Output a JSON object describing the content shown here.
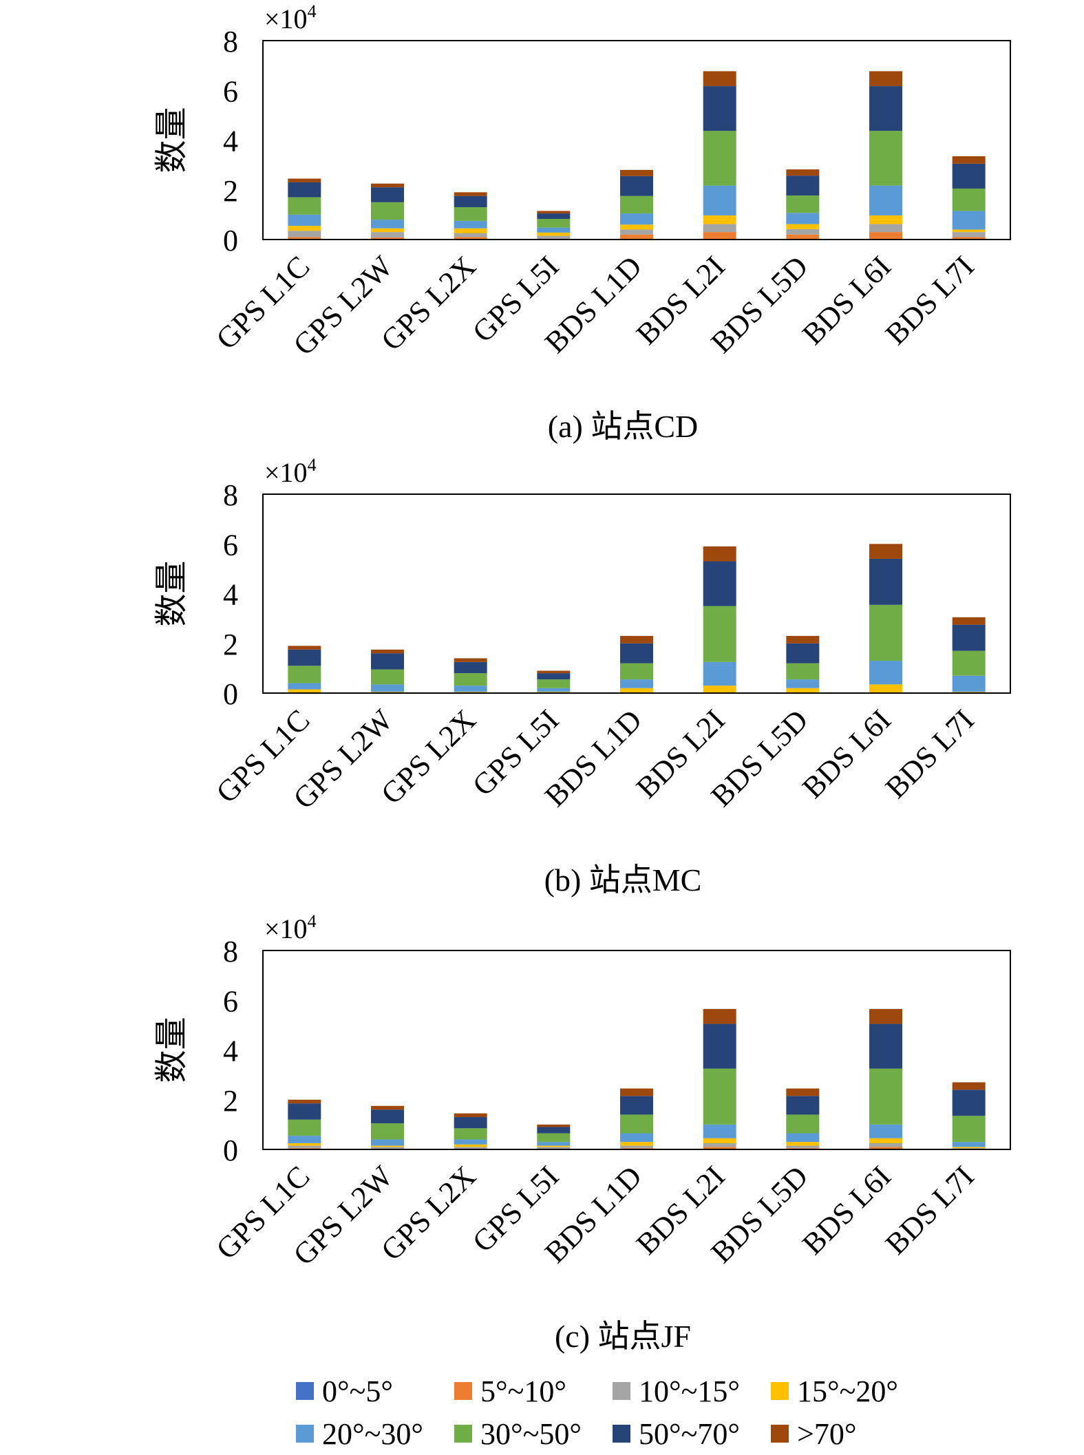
{
  "chart_data": [
    {
      "type": "bar",
      "stacked": true,
      "caption": "(a) 站点CD",
      "ylabel": "数量",
      "multiplier_label": "×10",
      "multiplier_exp": "4",
      "ylim": [
        0,
        8
      ],
      "yticks": [
        "0",
        "2",
        "4",
        "6",
        "8"
      ],
      "categories": [
        "GPS L1C",
        "GPS L2W",
        "GPS L2X",
        "GPS L5I",
        "BDS L1D",
        "BDS L2I",
        "BDS L5D",
        "BDS L6I",
        "BDS L7I"
      ],
      "series": [
        {
          "name": "0°~5°",
          "values": [
            0.0,
            0.0,
            0.0,
            0.0,
            0.0,
            0.0,
            0.0,
            0.0,
            0.0
          ]
        },
        {
          "name": "5°~10°",
          "values": [
            0.1,
            0.08,
            0.1,
            0.0,
            0.2,
            0.3,
            0.2,
            0.3,
            0.1
          ]
        },
        {
          "name": "10°~15°",
          "values": [
            0.25,
            0.22,
            0.15,
            0.15,
            0.2,
            0.32,
            0.22,
            0.32,
            0.2
          ]
        },
        {
          "name": "15°~20°",
          "values": [
            0.2,
            0.15,
            0.2,
            0.13,
            0.2,
            0.35,
            0.2,
            0.35,
            0.1
          ]
        },
        {
          "name": "20°~30°",
          "values": [
            0.45,
            0.35,
            0.3,
            0.2,
            0.45,
            1.2,
            0.45,
            1.2,
            0.75
          ]
        },
        {
          "name": "30°~50°",
          "values": [
            0.7,
            0.7,
            0.55,
            0.35,
            0.7,
            2.2,
            0.7,
            2.2,
            0.9
          ]
        },
        {
          "name": "50°~70°",
          "values": [
            0.6,
            0.6,
            0.45,
            0.22,
            0.8,
            1.8,
            0.8,
            1.8,
            1.0
          ]
        },
        {
          "name": ">70°",
          "values": [
            0.15,
            0.15,
            0.15,
            0.1,
            0.25,
            0.6,
            0.25,
            0.6,
            0.3
          ]
        }
      ]
    },
    {
      "type": "bar",
      "stacked": true,
      "caption": "(b) 站点MC",
      "ylabel": "数量",
      "multiplier_label": "×10",
      "multiplier_exp": "4",
      "ylim": [
        0,
        8
      ],
      "yticks": [
        "0",
        "2",
        "4",
        "6",
        "8"
      ],
      "categories": [
        "GPS L1C",
        "GPS L2W",
        "GPS L2X",
        "GPS L5I",
        "BDS L1D",
        "BDS L2I",
        "BDS L5D",
        "BDS L6I",
        "BDS L7I"
      ],
      "series": [
        {
          "name": "0°~5°",
          "values": [
            0.0,
            0.0,
            0.0,
            0.0,
            0.0,
            0.0,
            0.0,
            0.0,
            0.0
          ]
        },
        {
          "name": "5°~10°",
          "values": [
            0.0,
            0.0,
            0.0,
            0.0,
            0.0,
            0.0,
            0.0,
            0.0,
            0.0
          ]
        },
        {
          "name": "10°~15°",
          "values": [
            0.0,
            0.0,
            0.0,
            0.0,
            0.0,
            0.0,
            0.0,
            0.0,
            0.0
          ]
        },
        {
          "name": "15°~20°",
          "values": [
            0.15,
            0.05,
            0.05,
            0.05,
            0.2,
            0.3,
            0.2,
            0.35,
            0.05
          ]
        },
        {
          "name": "20°~30°",
          "values": [
            0.25,
            0.3,
            0.25,
            0.15,
            0.35,
            0.95,
            0.35,
            0.95,
            0.65
          ]
        },
        {
          "name": "30°~50°",
          "values": [
            0.7,
            0.6,
            0.5,
            0.35,
            0.65,
            2.25,
            0.65,
            2.25,
            1.0
          ]
        },
        {
          "name": "50°~70°",
          "values": [
            0.65,
            0.65,
            0.45,
            0.25,
            0.8,
            1.8,
            0.8,
            1.85,
            1.05
          ]
        },
        {
          "name": ">70°",
          "values": [
            0.15,
            0.15,
            0.15,
            0.1,
            0.3,
            0.6,
            0.3,
            0.6,
            0.3
          ]
        }
      ]
    },
    {
      "type": "bar",
      "stacked": true,
      "caption": "(c) 站点JF",
      "ylabel": "数量",
      "multiplier_label": "×10",
      "multiplier_exp": "4",
      "ylim": [
        0,
        8
      ],
      "yticks": [
        "0",
        "2",
        "4",
        "6",
        "8"
      ],
      "categories": [
        "GPS L1C",
        "GPS L2W",
        "GPS L2X",
        "GPS L5I",
        "BDS L1D",
        "BDS L2I",
        "BDS L5D",
        "BDS L6I",
        "BDS L7I"
      ],
      "series": [
        {
          "name": "0°~5°",
          "values": [
            0.0,
            0.0,
            0.0,
            0.0,
            0.0,
            0.0,
            0.0,
            0.0,
            0.0
          ]
        },
        {
          "name": "5°~10°",
          "values": [
            0.05,
            0.0,
            0.0,
            0.0,
            0.05,
            0.1,
            0.05,
            0.1,
            0.0
          ]
        },
        {
          "name": "10°~15°",
          "values": [
            0.1,
            0.1,
            0.1,
            0.1,
            0.1,
            0.15,
            0.1,
            0.15,
            0.05
          ]
        },
        {
          "name": "15°~20°",
          "values": [
            0.1,
            0.05,
            0.1,
            0.05,
            0.15,
            0.2,
            0.15,
            0.2,
            0.05
          ]
        },
        {
          "name": "20°~30°",
          "values": [
            0.3,
            0.25,
            0.2,
            0.15,
            0.35,
            0.55,
            0.35,
            0.55,
            0.2
          ]
        },
        {
          "name": "30°~50°",
          "values": [
            0.65,
            0.65,
            0.45,
            0.35,
            0.75,
            2.25,
            0.75,
            2.25,
            1.05
          ]
        },
        {
          "name": "50°~70°",
          "values": [
            0.65,
            0.55,
            0.45,
            0.25,
            0.75,
            1.8,
            0.75,
            1.8,
            1.05
          ]
        },
        {
          "name": ">70°",
          "values": [
            0.15,
            0.15,
            0.15,
            0.1,
            0.3,
            0.6,
            0.3,
            0.6,
            0.3
          ]
        }
      ]
    }
  ],
  "legend": {
    "placement": "bottom",
    "items": [
      {
        "label": "0°~5°",
        "color": "#4472C4"
      },
      {
        "label": "5°~10°",
        "color": "#ED7D31"
      },
      {
        "label": "10°~15°",
        "color": "#A5A5A5"
      },
      {
        "label": "15°~20°",
        "color": "#FFC000"
      },
      {
        "label": "20°~30°",
        "color": "#5B9BD5"
      },
      {
        "label": "30°~50°",
        "color": "#70AD47"
      },
      {
        "label": "50°~70°",
        "color": "#264478"
      },
      {
        "label": ">70°",
        "color": "#9E480E"
      }
    ]
  }
}
